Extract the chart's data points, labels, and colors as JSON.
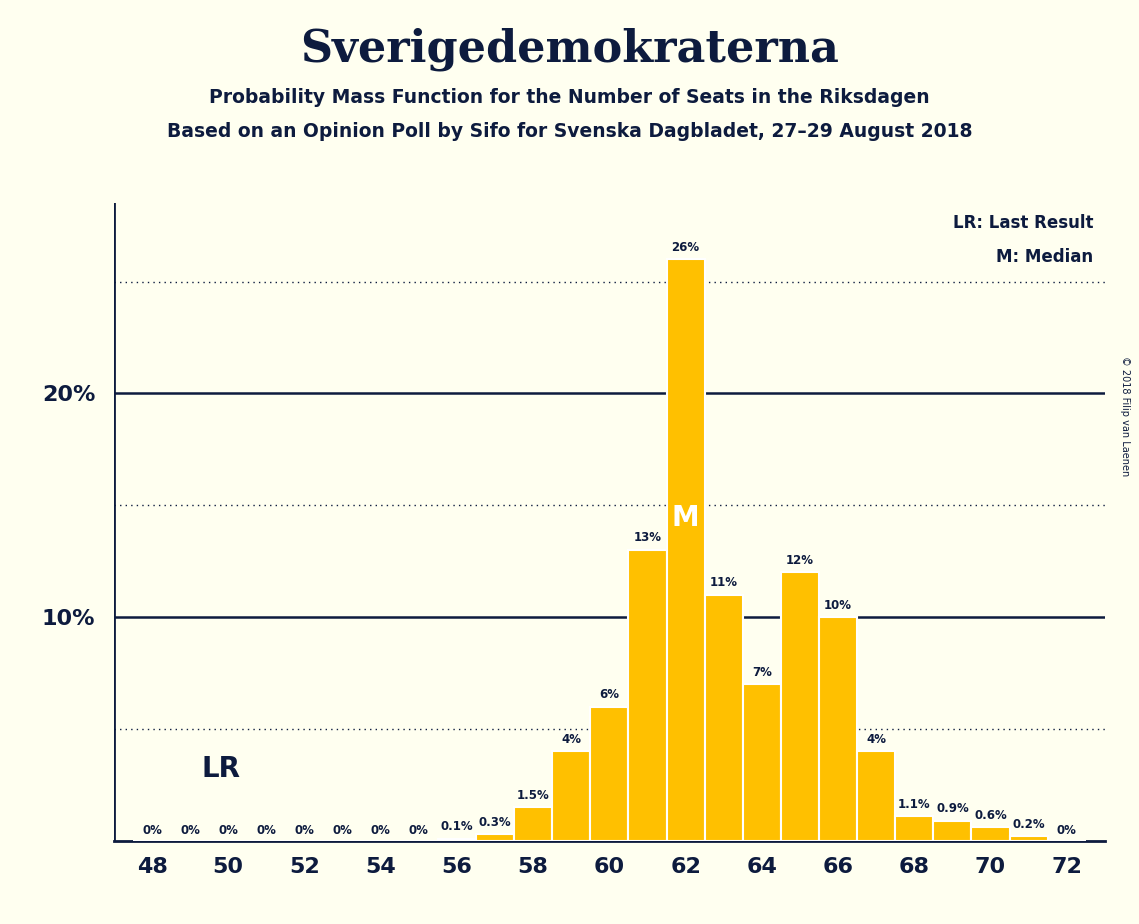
{
  "title": "Sverigedemokraterna",
  "subtitle1": "Probability Mass Function for the Number of Seats in the Riksdagen",
  "subtitle2": "Based on an Opinion Poll by Sifo for Svenska Dagbladet, 27–29 August 2018",
  "copyright": "© 2018 Filip van Laenen",
  "seats": [
    48,
    49,
    50,
    51,
    52,
    53,
    54,
    55,
    56,
    57,
    58,
    59,
    60,
    61,
    62,
    63,
    64,
    65,
    66,
    67,
    68,
    69,
    70,
    71,
    72
  ],
  "probabilities": [
    0.0,
    0.0,
    0.0,
    0.0,
    0.0,
    0.0,
    0.0,
    0.0,
    0.1,
    0.3,
    1.5,
    4.0,
    6.0,
    13.0,
    26.0,
    11.0,
    7.0,
    12.0,
    10.0,
    4.0,
    1.1,
    0.9,
    0.6,
    0.2,
    0.0
  ],
  "bar_labels": [
    "0%",
    "0%",
    "0%",
    "0%",
    "0%",
    "0%",
    "0%",
    "0%",
    "0.1%",
    "0.3%",
    "1.5%",
    "4%",
    "6%",
    "13%",
    "26%",
    "11%",
    "7%",
    "12%",
    "10%",
    "4%",
    "1.1%",
    "0.9%",
    "0.6%",
    "0.2%",
    "0%"
  ],
  "bar_color": "#FFC000",
  "bar_edge_color": "#FFFFFF",
  "background_color": "#FFFFF0",
  "text_color": "#0d1b3e",
  "solid_lines": [
    10.0,
    20.0
  ],
  "dotted_lines": [
    5.0,
    15.0,
    25.0
  ],
  "lr_label": "LR",
  "median_label": "M",
  "legend_lr": "LR: Last Result",
  "legend_m": "M: Median",
  "xlabel_seats": [
    48,
    50,
    52,
    54,
    56,
    58,
    60,
    62,
    64,
    66,
    68,
    70,
    72
  ],
  "xlim": [
    47.0,
    73.0
  ],
  "ylim": [
    0,
    28.5
  ]
}
